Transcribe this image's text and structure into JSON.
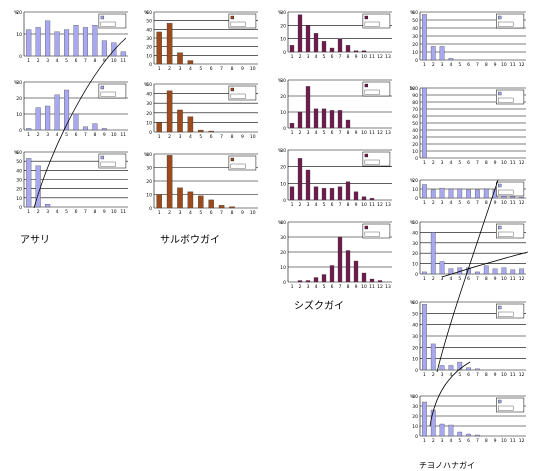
{
  "figure": {
    "labels": {
      "asari": "アサリ",
      "saruboogai": "サルボウガイ",
      "shizukugai": "シズクガイ",
      "chiyonohanagai": "チヨノハナガイ"
    }
  },
  "colors": {
    "asari": "#a8a8f0",
    "saruboogai": "#9a4a1c",
    "shizukugai": "#6e1c4c",
    "chiyonohanagai": "#a8a8f0",
    "grid": "#000000"
  },
  "chart_data": [
    {
      "id": "asari-1",
      "type": "bar",
      "group": "アサリ",
      "ylabel": "%",
      "xlabel": "",
      "ylim": [
        0,
        20
      ],
      "yticks": [
        0,
        10,
        20
      ],
      "categories": [
        "1",
        "2",
        "3",
        "4",
        "5",
        "6",
        "7",
        "8",
        "9",
        "10",
        "11"
      ],
      "series": [
        {
          "values": [
            12,
            13,
            16,
            11,
            12,
            14,
            13,
            14,
            7,
            6,
            2
          ]
        }
      ],
      "legend": [
        "",
        ""
      ]
    },
    {
      "id": "asari-2",
      "type": "bar",
      "group": "アサリ",
      "ylabel": "%",
      "xlabel": "",
      "ylim": [
        0,
        30
      ],
      "yticks": [
        0,
        10,
        20,
        30
      ],
      "categories": [
        "1",
        "2",
        "3",
        "4",
        "5",
        "6",
        "7",
        "8",
        "9",
        "10",
        "11"
      ],
      "series": [
        {
          "values": [
            1,
            14,
            15,
            22,
            25,
            10,
            2,
            4,
            1,
            0,
            0
          ]
        }
      ],
      "legend": [
        "",
        ""
      ]
    },
    {
      "id": "asari-3",
      "type": "bar",
      "group": "アサリ",
      "ylabel": "%",
      "xlabel": "",
      "ylim": [
        0,
        60
      ],
      "yticks": [
        0,
        10,
        20,
        30,
        40,
        50,
        60
      ],
      "categories": [
        "1",
        "2",
        "3",
        "4",
        "5",
        "6",
        "7",
        "8",
        "9",
        "10",
        "11"
      ],
      "series": [
        {
          "values": [
            53,
            45,
            3,
            0,
            0,
            0,
            0,
            0,
            0,
            0,
            0
          ]
        }
      ],
      "legend": [
        "",
        ""
      ]
    },
    {
      "id": "saru-1",
      "type": "bar",
      "group": "サルボウガイ",
      "ylabel": "%",
      "xlabel": "",
      "ylim": [
        0,
        60
      ],
      "yticks": [
        0,
        10,
        20,
        30,
        40,
        50,
        60
      ],
      "categories": [
        "1",
        "2",
        "3",
        "4",
        "5",
        "6",
        "7",
        "8",
        "9",
        "10"
      ],
      "series": [
        {
          "values": [
            37,
            47,
            13,
            4,
            0,
            0,
            0,
            0,
            0,
            0
          ]
        }
      ],
      "legend": [
        "",
        ""
      ]
    },
    {
      "id": "saru-2",
      "type": "bar",
      "group": "サルボウガイ",
      "ylabel": "%",
      "xlabel": "",
      "ylim": [
        0,
        50
      ],
      "yticks": [
        0,
        10,
        20,
        30,
        40,
        50
      ],
      "categories": [
        "1",
        "2",
        "3",
        "4",
        "5",
        "6",
        "7",
        "8",
        "9",
        "10"
      ],
      "series": [
        {
          "values": [
            10,
            43,
            23,
            16,
            2,
            1,
            0,
            0,
            0,
            0
          ]
        }
      ],
      "legend": [
        "",
        ""
      ]
    },
    {
      "id": "saru-3",
      "type": "bar",
      "group": "サルボウガイ",
      "ylabel": "%",
      "xlabel": "",
      "ylim": [
        0,
        40
      ],
      "yticks": [
        0,
        10,
        20,
        30,
        40
      ],
      "categories": [
        "1",
        "2",
        "3",
        "4",
        "5",
        "6",
        "7",
        "8",
        "9",
        "10"
      ],
      "series": [
        {
          "values": [
            10,
            39,
            15,
            12,
            9,
            6,
            2,
            1,
            0,
            0
          ]
        }
      ],
      "legend": [
        "",
        ""
      ]
    },
    {
      "id": "shizu-1",
      "type": "bar",
      "group": "シズクガイ",
      "ylabel": "%",
      "xlabel": "",
      "ylim": [
        0,
        30
      ],
      "yticks": [
        0,
        10,
        20,
        30
      ],
      "categories": [
        "1",
        "2",
        "3",
        "4",
        "5",
        "6",
        "7",
        "8",
        "9",
        "10",
        "11",
        "12",
        "13"
      ],
      "series": [
        {
          "values": [
            5,
            28,
            20,
            14,
            8,
            3,
            10,
            5,
            1,
            1,
            0,
            0,
            0
          ]
        }
      ],
      "legend": [
        "",
        ""
      ]
    },
    {
      "id": "shizu-2",
      "type": "bar",
      "group": "シズクガイ",
      "ylabel": "%",
      "xlabel": "",
      "ylim": [
        0,
        30
      ],
      "yticks": [
        0,
        10,
        20,
        30
      ],
      "categories": [
        "1",
        "2",
        "3",
        "4",
        "5",
        "6",
        "7",
        "8",
        "9",
        "10",
        "11",
        "12",
        "13"
      ],
      "series": [
        {
          "values": [
            3,
            10,
            26,
            12,
            12,
            11,
            11,
            5,
            0,
            0,
            0,
            0,
            0
          ]
        }
      ],
      "legend": [
        "",
        ""
      ]
    },
    {
      "id": "shizu-3",
      "type": "bar",
      "group": "シズクガイ",
      "ylabel": "%",
      "xlabel": "",
      "ylim": [
        0,
        30
      ],
      "yticks": [
        0,
        10,
        20,
        30
      ],
      "categories": [
        "1",
        "2",
        "3",
        "4",
        "5",
        "6",
        "7",
        "8",
        "9",
        "10",
        "11",
        "12",
        "13"
      ],
      "series": [
        {
          "values": [
            8,
            25,
            18,
            8,
            7,
            7,
            8,
            11,
            5,
            2,
            1,
            0,
            0
          ]
        }
      ],
      "legend": [
        "",
        ""
      ]
    },
    {
      "id": "shizu-4",
      "type": "bar",
      "group": "シズクガイ",
      "ylabel": "%",
      "xlabel": "",
      "ylim": [
        0,
        40
      ],
      "yticks": [
        0,
        10,
        20,
        30,
        40
      ],
      "categories": [
        "1",
        "2",
        "3",
        "4",
        "5",
        "6",
        "7",
        "8",
        "9",
        "10",
        "11",
        "12",
        "13"
      ],
      "series": [
        {
          "values": [
            0,
            1,
            1,
            3,
            5,
            11,
            30,
            21,
            14,
            6,
            2,
            1,
            0
          ]
        }
      ],
      "legend": [
        "",
        ""
      ]
    },
    {
      "id": "chiyo-1",
      "type": "bar",
      "group": "チヨノハナガイ",
      "ylabel": "%",
      "xlabel": "",
      "ylim": [
        0,
        60
      ],
      "yticks": [
        0,
        10,
        20,
        30,
        40,
        50,
        60
      ],
      "categories": [
        "1",
        "2",
        "3",
        "4",
        "5",
        "6",
        "7",
        "8",
        "9",
        "10",
        "11",
        "12"
      ],
      "series": [
        {
          "values": [
            57,
            17,
            17,
            2,
            0,
            0,
            0,
            0,
            0,
            0,
            0,
            0
          ]
        }
      ],
      "legend": [
        "",
        ""
      ]
    },
    {
      "id": "chiyo-2",
      "type": "bar",
      "group": "チヨノハナガイ",
      "ylabel": "%",
      "xlabel": "",
      "ylim": [
        0,
        100
      ],
      "yticks": [
        0,
        10,
        20,
        30,
        40,
        50,
        60,
        70,
        80,
        90,
        100
      ],
      "categories": [
        "1",
        "2",
        "3",
        "4",
        "5",
        "6",
        "7",
        "8",
        "9",
        "10",
        "11",
        "12"
      ],
      "series": [
        {
          "values": [
            100,
            0,
            0,
            0,
            0,
            0,
            0,
            0,
            0,
            0,
            0,
            0
          ]
        }
      ],
      "legend": [
        "",
        ""
      ]
    },
    {
      "id": "chiyo-3",
      "type": "bar",
      "group": "チヨノハナガイ",
      "ylabel": "%",
      "xlabel": "",
      "ylim": [
        0,
        20
      ],
      "yticks": [
        0,
        10,
        20
      ],
      "categories": [
        "1",
        "2",
        "3",
        "4",
        "5",
        "6",
        "7",
        "8",
        "9",
        "10",
        "11",
        "12"
      ],
      "series": [
        {
          "values": [
            15,
            9,
            11,
            10,
            10,
            9,
            9,
            10,
            9,
            9,
            2,
            1
          ]
        }
      ],
      "legend": [
        "",
        ""
      ]
    },
    {
      "id": "chiyo-4",
      "type": "bar",
      "group": "チヨノハナガイ",
      "ylabel": "%",
      "xlabel": "",
      "ylim": [
        0,
        50
      ],
      "yticks": [
        0,
        10,
        20,
        30,
        40,
        50
      ],
      "categories": [
        "1",
        "2",
        "3",
        "4",
        "5",
        "6",
        "7",
        "8",
        "9",
        "10",
        "11",
        "12"
      ],
      "series": [
        {
          "values": [
            2,
            40,
            12,
            5,
            6,
            6,
            2,
            8,
            5,
            6,
            4,
            5
          ]
        }
      ],
      "legend": [
        "",
        ""
      ]
    },
    {
      "id": "chiyo-5",
      "type": "bar",
      "group": "チヨノハナガイ",
      "ylabel": "%",
      "xlabel": "",
      "ylim": [
        0,
        60
      ],
      "yticks": [
        0,
        10,
        20,
        30,
        40,
        50,
        60
      ],
      "categories": [
        "1",
        "2",
        "3",
        "4",
        "5",
        "6",
        "7",
        "8",
        "9",
        "10",
        "11",
        "12"
      ],
      "series": [
        {
          "values": [
            58,
            23,
            4,
            4,
            7,
            2,
            1,
            0,
            0,
            0,
            0,
            0
          ]
        }
      ],
      "legend": [
        "",
        ""
      ]
    },
    {
      "id": "chiyo-6",
      "type": "bar",
      "group": "チヨノハナガイ",
      "ylabel": "%",
      "xlabel": "",
      "ylim": [
        0,
        40
      ],
      "yticks": [
        0,
        10,
        20,
        30,
        40
      ],
      "categories": [
        "1",
        "2",
        "3",
        "4",
        "5",
        "6",
        "7",
        "8",
        "9",
        "10",
        "11",
        "12"
      ],
      "series": [
        {
          "values": [
            34,
            26,
            12,
            11,
            4,
            2,
            1,
            0,
            0,
            0,
            0,
            0
          ]
        }
      ],
      "legend": [
        "",
        ""
      ]
    }
  ]
}
